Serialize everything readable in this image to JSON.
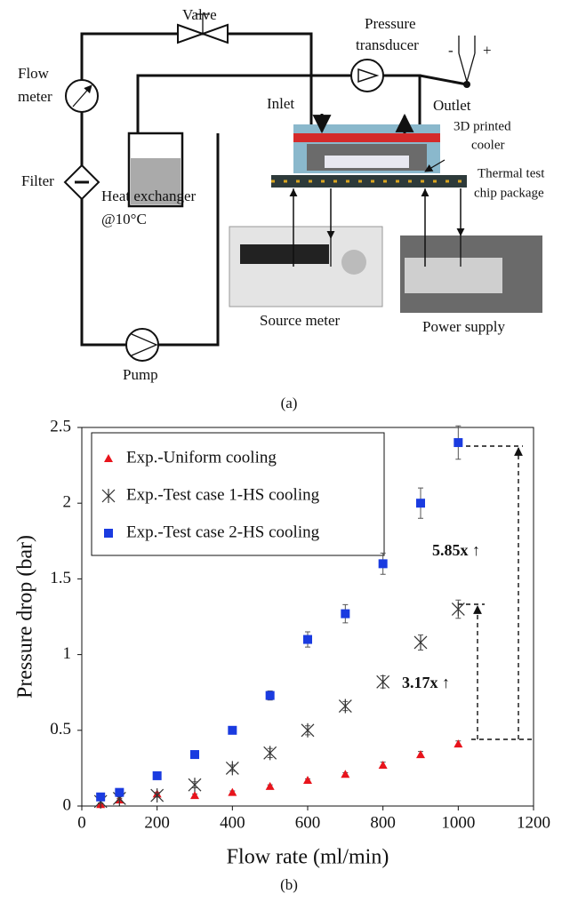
{
  "diagram": {
    "caption": "(a)",
    "valve": "Valve",
    "pressure_transducer": [
      "Pressure",
      "transducer"
    ],
    "flow_meter": [
      "Flow",
      "meter"
    ],
    "inlet": "Inlet",
    "outlet": "Outlet",
    "cooler": [
      "3D printed",
      "cooler"
    ],
    "chip_package": [
      "Thermal test",
      "chip package"
    ],
    "filter": "Filter",
    "heat_exchanger": [
      "Heat exchanger",
      "@10°C"
    ],
    "source_meter": "Source meter",
    "power_supply": "Power supply",
    "pump": "Pump",
    "minus": "-",
    "plus": "+"
  },
  "chart_data": {
    "type": "scatter",
    "caption": "(b)",
    "x_label": "Flow rate (ml/min)",
    "y_label": "Pressure drop (bar)",
    "x": [
      50,
      100,
      200,
      300,
      400,
      500,
      600,
      700,
      800,
      900,
      1000
    ],
    "series": [
      {
        "name": "Exp.-Uniform cooling",
        "color": "#e8141c",
        "marker": "triangle",
        "values": [
          0.01,
          0.04,
          0.08,
          0.07,
          0.09,
          0.13,
          0.17,
          0.21,
          0.27,
          0.34,
          0.41
        ],
        "errors": [
          0.01,
          0.01,
          0.01,
          0.01,
          0.01,
          0.01,
          0.01,
          0.01,
          0.02,
          0.02,
          0.02
        ]
      },
      {
        "name": "Exp.-Test case 1-HS cooling",
        "color": "#333333",
        "marker": "asterisk",
        "values": [
          0.03,
          0.05,
          0.07,
          0.14,
          0.25,
          0.35,
          0.5,
          0.66,
          0.82,
          1.08,
          1.3
        ],
        "errors": [
          0.01,
          0.01,
          0.01,
          0.02,
          0.02,
          0.03,
          0.03,
          0.03,
          0.04,
          0.05,
          0.06
        ]
      },
      {
        "name": "Exp.-Test case 2-HS cooling",
        "color": "#1a3be0",
        "marker": "square",
        "values": [
          0.06,
          0.09,
          0.2,
          0.34,
          0.5,
          0.73,
          1.1,
          1.27,
          1.6,
          2.0,
          2.4
        ],
        "errors": [
          0.01,
          0.01,
          0.01,
          0.01,
          0.01,
          0.03,
          0.05,
          0.06,
          0.07,
          0.1,
          0.11
        ]
      }
    ],
    "annotations": [
      "5.85x ↑",
      "3.17x ↑"
    ],
    "xlim": [
      0,
      1200
    ],
    "xticks": [
      0,
      200,
      400,
      600,
      800,
      1000,
      1200
    ],
    "ylim": [
      0,
      2.5
    ],
    "yticks": [
      0,
      0.5,
      1,
      1.5,
      2,
      2.5
    ],
    "grid": false,
    "legend": "upper-left"
  }
}
